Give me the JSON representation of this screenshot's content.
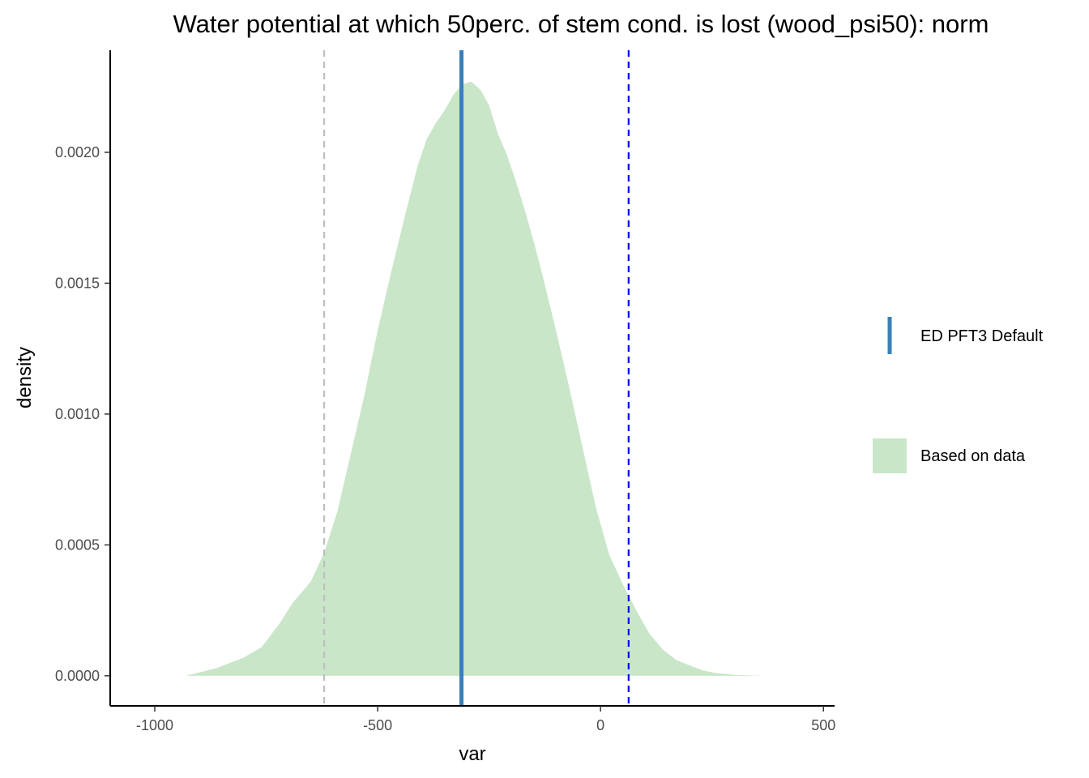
{
  "chart_data": {
    "type": "area",
    "title": "Water potential at which 50perc. of stem cond. is lost (wood_psi50): norm",
    "xlabel": "var",
    "ylabel": "density",
    "xlim": [
      -1100,
      525
    ],
    "ylim": [
      -0.000115,
      0.00239
    ],
    "x_ticks": [
      -1000,
      -500,
      0,
      500
    ],
    "x_tick_labels": [
      "-1000",
      "-500",
      "0",
      "500"
    ],
    "y_ticks": [
      0.0,
      0.0005,
      0.001,
      0.0015,
      0.002
    ],
    "y_tick_labels": [
      "0.0000",
      "0.0005",
      "0.0010",
      "0.0015",
      "0.0020"
    ],
    "grid": false,
    "legend_position": "right",
    "series": [
      {
        "name": "Based on data",
        "kind": "density-area",
        "color": "#c9e6c9",
        "x": [
          -930,
          -860,
          -800,
          -760,
          -720,
          -690,
          -650,
          -620,
          -590,
          -560,
          -530,
          -500,
          -470,
          -440,
          -410,
          -390,
          -370,
          -350,
          -330,
          -310,
          -290,
          -270,
          -250,
          -230,
          -210,
          -190,
          -170,
          -150,
          -130,
          -100,
          -70,
          -40,
          -10,
          20,
          50,
          80,
          110,
          140,
          170,
          200,
          230,
          260,
          300,
          340,
          370
        ],
        "y": [
          0.0,
          3e-05,
          7e-05,
          0.00011,
          0.0002,
          0.00028,
          0.00036,
          0.00047,
          0.00063,
          0.00085,
          0.00107,
          0.00132,
          0.00154,
          0.00175,
          0.00195,
          0.00205,
          0.00211,
          0.00216,
          0.00222,
          0.00226,
          0.00227,
          0.00224,
          0.00218,
          0.00207,
          0.00199,
          0.00189,
          0.00178,
          0.00166,
          0.00153,
          0.00132,
          0.0011,
          0.00087,
          0.00064,
          0.00046,
          0.00035,
          0.00025,
          0.00016,
          0.0001,
          6e-05,
          4e-05,
          2e-05,
          1e-05,
          4e-06,
          1e-06,
          0.0
        ]
      },
      {
        "name": "ED PFT3 Default",
        "kind": "vline",
        "x": -312,
        "color": "#3a7fb8"
      }
    ],
    "reference_lines": [
      {
        "kind": "vline-dashed",
        "x": -620,
        "color": "#bebebe"
      },
      {
        "kind": "vline-dashed",
        "x": 63,
        "color": "#0000ee"
      }
    ],
    "legend": [
      {
        "label": "ED PFT3 Default",
        "key": "line",
        "color": "#3a7fb8"
      },
      {
        "label": "Based on data",
        "key": "fill",
        "color": "#c9e6c9"
      }
    ]
  }
}
